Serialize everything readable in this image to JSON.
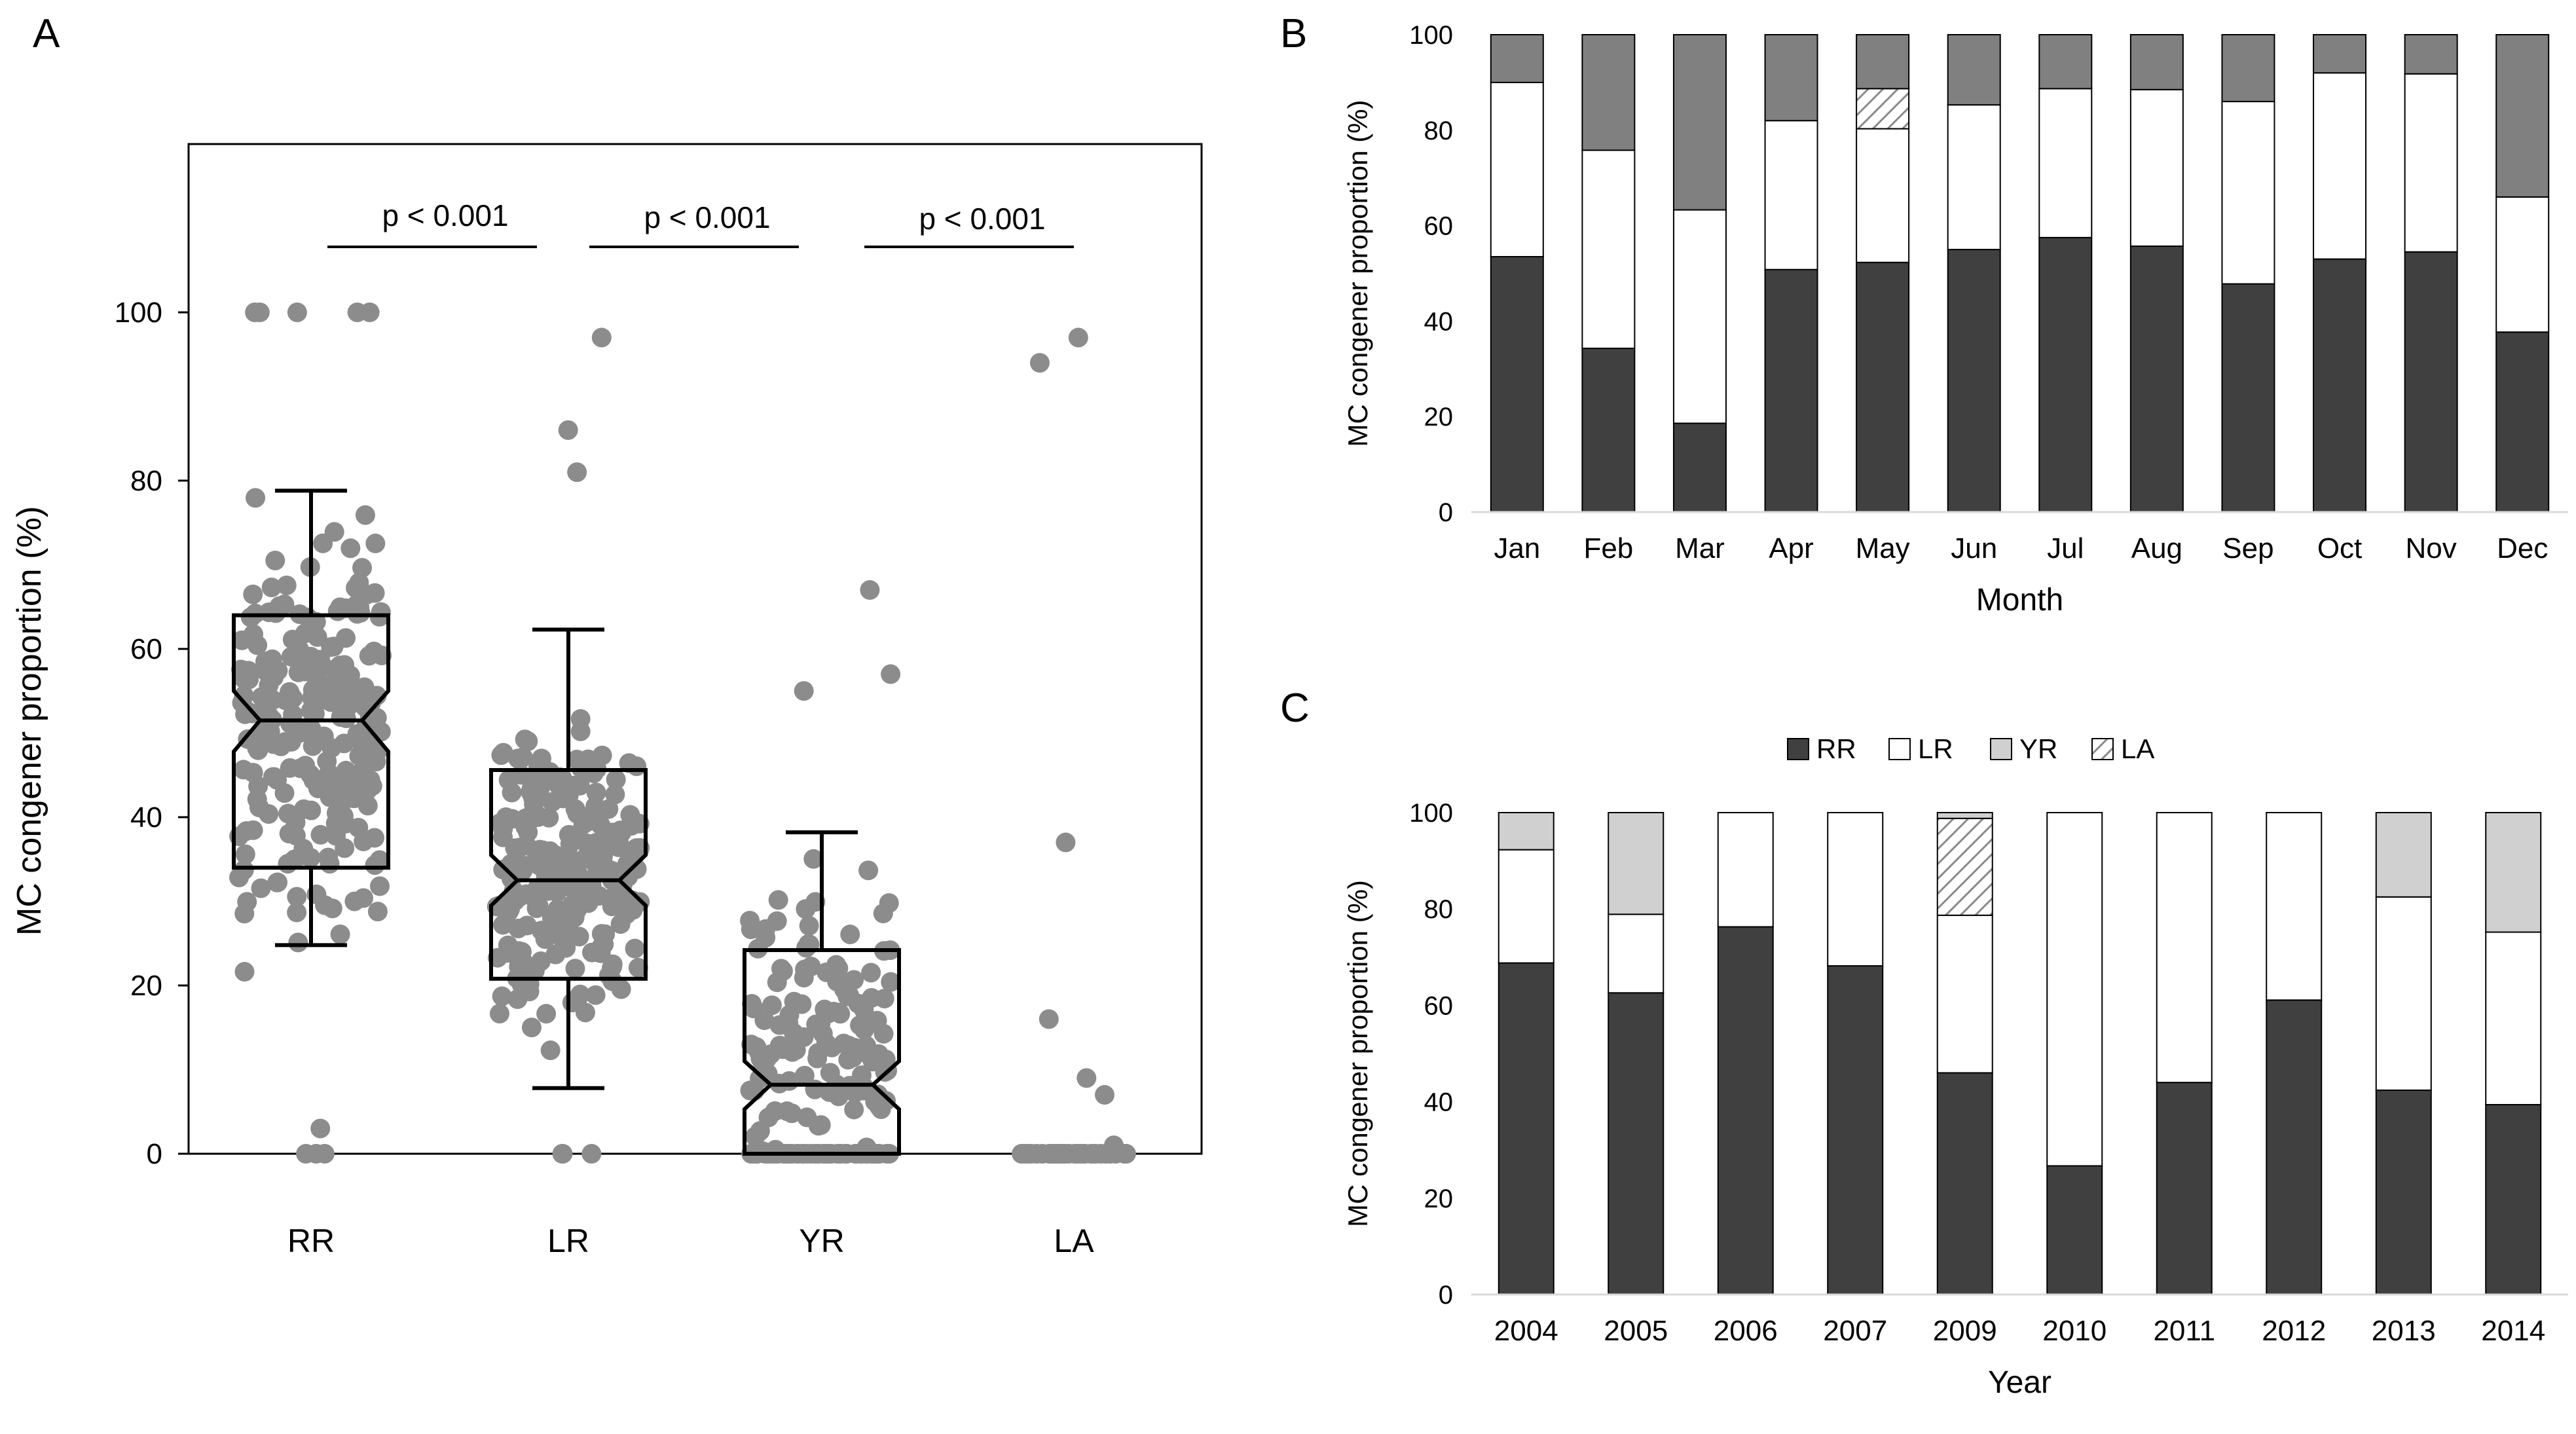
{
  "colors": {
    "RR": "#404040",
    "LR": "#ffffff",
    "YR": "#d0d0d0",
    "LA": "hatch",
    "monthTop": "#808080",
    "dots": "#8c8c8c",
    "frame": "#000000"
  },
  "chart_data": [
    {
      "panel": "A",
      "type": "scatter",
      "subtype": "jittered-strip-with-notched-boxplot",
      "categories": [
        "RR",
        "LR",
        "YR",
        "LA"
      ],
      "ylabel": "MC congener proportion (%)",
      "xlabel": "",
      "ylim": [
        0,
        120
      ],
      "yticks": [
        0,
        20,
        40,
        60,
        80,
        100
      ],
      "boxes": [
        {
          "category": "RR",
          "whisker_low": 24.8,
          "q1": 34.0,
          "median": 51.5,
          "q3": 64.0,
          "whisker_high": 78.8,
          "notch_low": 47.8,
          "notch_high": 55.0
        },
        {
          "category": "LR",
          "whisker_low": 7.8,
          "q1": 20.8,
          "median": 32.5,
          "q3": 45.6,
          "whisker_high": 62.3,
          "notch_low": 29.5,
          "notch_high": 35.5
        },
        {
          "category": "YR",
          "whisker_low": 0,
          "q1": 0,
          "median": 8.2,
          "q3": 24.2,
          "whisker_high": 38.2,
          "notch_low": 5.3,
          "notch_high": 11.0
        }
      ],
      "annotations": [
        {
          "text": "p < 0.001",
          "between": [
            "RR",
            "LR"
          ]
        },
        {
          "text": "p < 0.001",
          "between": [
            "LR",
            "YR"
          ]
        },
        {
          "text": "p < 0.001",
          "between": [
            "YR",
            "LA"
          ]
        }
      ],
      "points_note": "Individual samples shown as jittered grey points; LA values mostly 0 with outliers near 97, 94, 37, 16, 9, 7."
    },
    {
      "panel": "B",
      "type": "bar",
      "stacked": true,
      "xlabel": "Month",
      "ylabel": "MC congener proportion (%)",
      "ylim": [
        0,
        100
      ],
      "yticks": [
        0,
        20,
        40,
        60,
        80,
        100
      ],
      "categories": [
        "Jan",
        "Feb",
        "Mar",
        "Apr",
        "May",
        "Jun",
        "Jul",
        "Aug",
        "Sep",
        "Oct",
        "Nov",
        "Dec"
      ],
      "series": [
        {
          "name": "RR",
          "values": [
            53.5,
            34.3,
            18.6,
            50.8,
            52.3,
            55.0,
            57.5,
            55.7,
            47.8,
            53.0,
            54.5,
            37.7
          ]
        },
        {
          "name": "LR",
          "values": [
            36.5,
            41.5,
            44.7,
            31.2,
            28.0,
            30.3,
            31.2,
            32.8,
            38.2,
            39.0,
            37.3,
            28.3
          ]
        },
        {
          "name": "LA",
          "values": [
            0,
            0,
            0,
            0,
            8.4,
            0,
            0,
            0,
            0,
            0,
            0,
            0
          ]
        },
        {
          "name": "YR",
          "values": [
            10.0,
            24.2,
            36.7,
            18.0,
            11.3,
            14.7,
            11.3,
            11.5,
            14.0,
            8.0,
            8.2,
            34.0
          ]
        }
      ]
    },
    {
      "panel": "C",
      "type": "bar",
      "stacked": true,
      "xlabel": "Year",
      "ylabel": "MC congener proportion (%)",
      "ylim": [
        0,
        100
      ],
      "yticks": [
        0,
        20,
        40,
        60,
        80,
        100
      ],
      "legend": [
        "RR",
        "LR",
        "YR",
        "LA"
      ],
      "legend_position": "top",
      "categories": [
        "2004",
        "2005",
        "2006",
        "2007",
        "2009",
        "2010",
        "2011",
        "2012",
        "2013",
        "2014"
      ],
      "series": [
        {
          "name": "RR",
          "values": [
            68.8,
            62.6,
            76.3,
            68.2,
            46.0,
            26.7,
            44.0,
            61.1,
            42.4,
            39.4
          ]
        },
        {
          "name": "LR",
          "values": [
            23.5,
            16.3,
            23.7,
            31.8,
            32.7,
            73.3,
            56.0,
            38.9,
            40.1,
            35.8
          ]
        },
        {
          "name": "LA",
          "values": [
            0,
            0,
            0,
            0,
            20.1,
            0,
            0,
            0,
            0,
            0
          ]
        },
        {
          "name": "YR",
          "values": [
            7.7,
            21.1,
            0,
            0,
            1.2,
            0,
            0,
            0,
            17.5,
            24.8
          ]
        }
      ]
    }
  ],
  "labels": {
    "panelA": "A",
    "panelB": "B",
    "panelC": "C"
  }
}
